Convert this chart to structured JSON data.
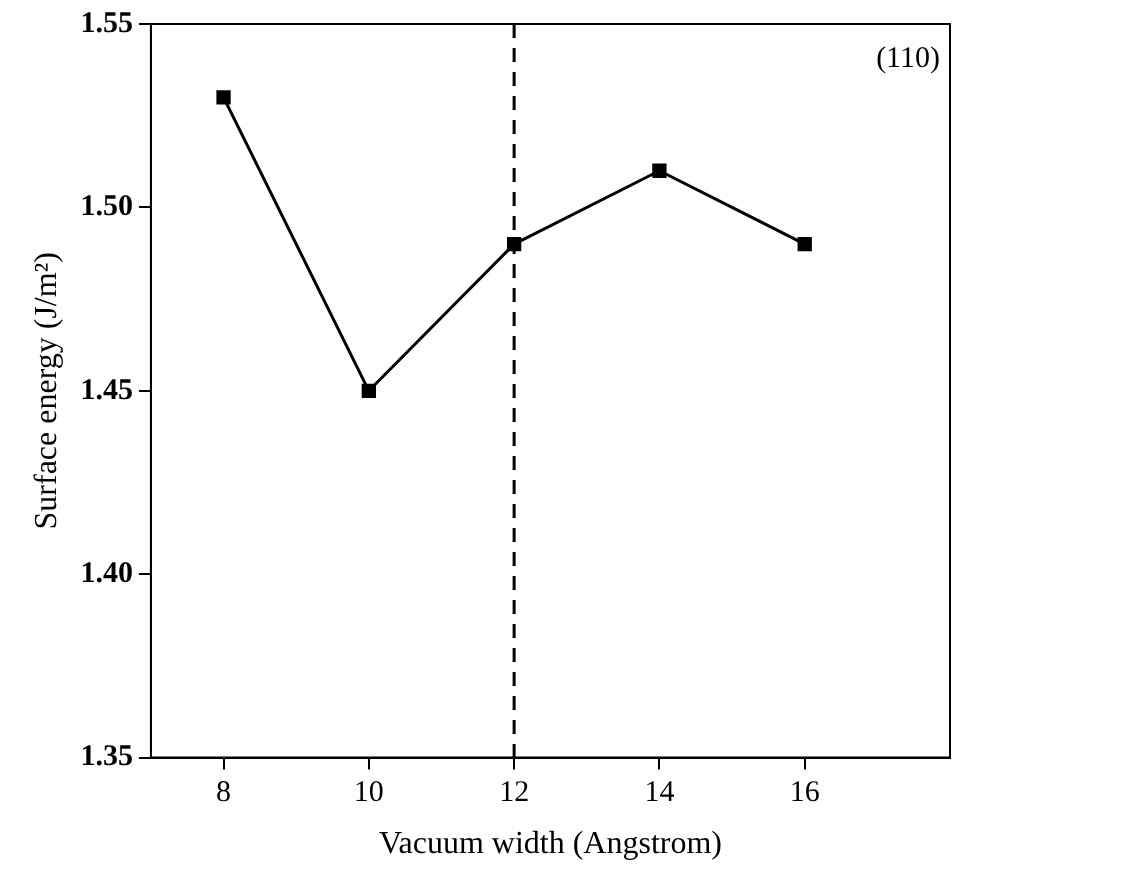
{
  "chart_data": {
    "type": "line",
    "xlabel": "Vacuum width (Angstrom)",
    "ylabel": "Surface energy (J/m²)",
    "x": [
      8,
      10,
      12,
      14,
      16
    ],
    "series": [
      {
        "color": "#000000",
        "values": [
          1.53,
          1.45,
          1.49,
          1.51,
          1.49
        ]
      }
    ],
    "xlim": [
      7,
      18
    ],
    "xticks": [
      8,
      10,
      12,
      14,
      16
    ],
    "ylim": [
      1.35,
      1.55
    ],
    "yticks": [
      {
        "value": 1.35,
        "label": "1.35"
      },
      {
        "value": 1.4,
        "label": "1.40"
      },
      {
        "value": 1.45,
        "label": "1.45"
      },
      {
        "value": 1.5,
        "label": "1.50"
      },
      {
        "value": 1.55,
        "label": "1.55"
      }
    ],
    "ref_lines": [
      {
        "axis": "x",
        "value": 12,
        "color": "#000000",
        "line_style": "dashed"
      }
    ],
    "annotations": [
      "(110)"
    ],
    "grid": false,
    "legend": false,
    "marker": "square",
    "line_style": "solid"
  }
}
